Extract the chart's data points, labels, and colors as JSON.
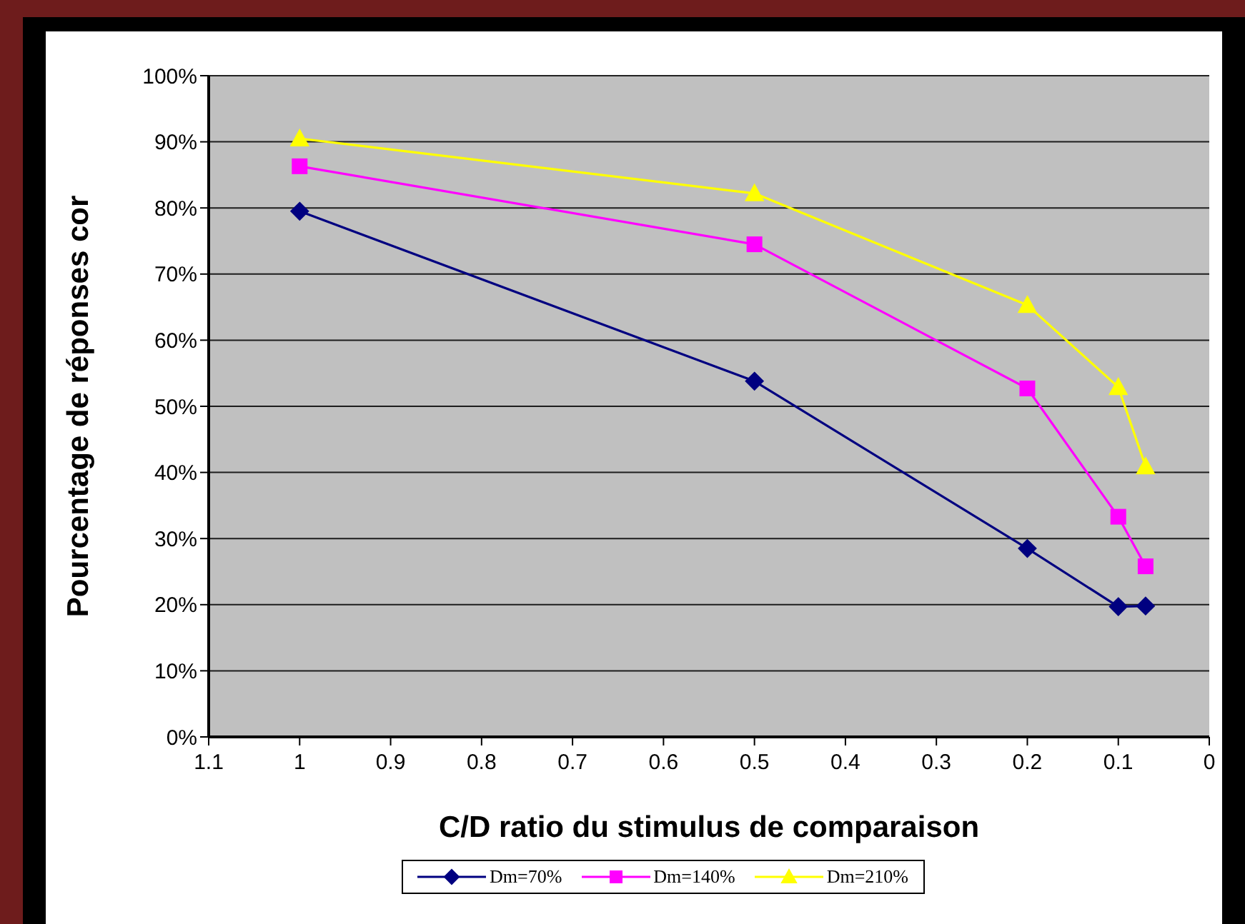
{
  "chart_data": {
    "type": "line",
    "ylabel": "Pourcentage de réponses cor",
    "xlabel": "C/D ratio du stimulus de comparaison",
    "xlim": [
      1.1,
      0
    ],
    "xticks": [
      1.1,
      1,
      0.9,
      0.8,
      0.7,
      0.6,
      0.5,
      0.4,
      0.3,
      0.2,
      0.1,
      0
    ],
    "ylim": [
      0,
      100
    ],
    "yticks": [
      {
        "value": 0,
        "label": "0%"
      },
      {
        "value": 10,
        "label": "10%"
      },
      {
        "value": 20,
        "label": "20%"
      },
      {
        "value": 30,
        "label": "30%"
      },
      {
        "value": 40,
        "label": "40%"
      },
      {
        "value": 50,
        "label": "50%"
      },
      {
        "value": 60,
        "label": "60%"
      },
      {
        "value": 70,
        "label": "70%"
      },
      {
        "value": 80,
        "label": "80%"
      },
      {
        "value": 90,
        "label": "90%"
      },
      {
        "value": 100,
        "label": "100%"
      }
    ],
    "x": [
      1,
      0.5,
      0.2,
      0.1,
      0.07
    ],
    "grid": "y",
    "legend": "bottom",
    "line_style": "solid",
    "series": [
      {
        "name": "Dm=70%",
        "color": "#000080",
        "marker": "diamond",
        "values": [
          79.5,
          53.8,
          28.5,
          19.7,
          19.8
        ]
      },
      {
        "name": "Dm=140%",
        "color": "#ff00ff",
        "marker": "square",
        "values": [
          86.3,
          74.5,
          52.7,
          33.3,
          25.8
        ]
      },
      {
        "name": "Dm=210%",
        "color": "#ffff00",
        "marker": "triangle",
        "values": [
          90.5,
          82.2,
          65.3,
          52.9,
          40.9
        ]
      }
    ]
  }
}
